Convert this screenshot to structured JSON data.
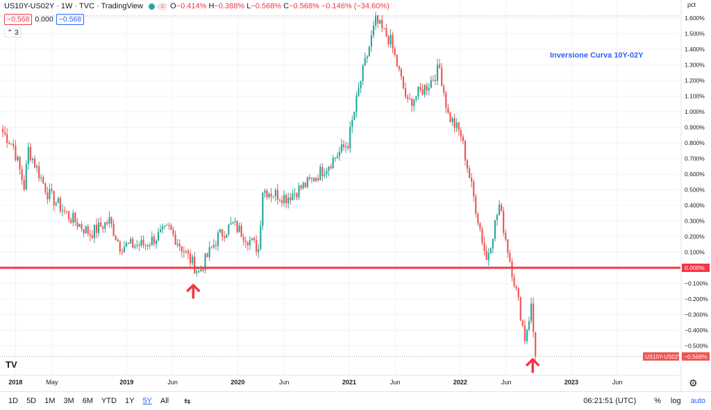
{
  "legend": {
    "symbol": "US10Y-US02Y · 1W · TVC · TradingView",
    "flag_icon": "equals-flag-icon",
    "o_label": "O",
    "o_value": "−0.414%",
    "h_label": "H",
    "h_value": "−0.388%",
    "l_label": "L",
    "l_value": "−0.568%",
    "c_label": "C",
    "c_value": "−0.568%",
    "change": "−0.146% (−34.60%)"
  },
  "price_row": {
    "sell": "−0.568",
    "spread": "0.000",
    "buy": "−0.568"
  },
  "collapse": {
    "label": "⌃ 3"
  },
  "annotation": "Inversione Curva 10Y-02Y",
  "price_axis": {
    "unit": "pct",
    "ticks": [
      "1.600%",
      "1.500%",
      "1.400%",
      "1.300%",
      "1.200%",
      "1.100%",
      "1.000%",
      "0.900%",
      "0.800%",
      "0.700%",
      "0.600%",
      "0.500%",
      "0.400%",
      "0.300%",
      "0.200%",
      "0.100%",
      "0.000%",
      "−0.100%",
      "−0.200%",
      "−0.300%",
      "−0.400%",
      "−0.500%",
      "−0.568%"
    ],
    "zero_tag": "0.000%",
    "last_tag": "−0.568%",
    "series_tag": "US10Y-US02Y"
  },
  "time_axis": {
    "labels": [
      "2018",
      "May",
      "2019",
      "Jun",
      "2020",
      "Jun",
      "2021",
      "Jun",
      "2022",
      "Jun",
      "2023",
      "Jun"
    ]
  },
  "toolbar": {
    "ranges": [
      "1D",
      "5D",
      "1M",
      "3M",
      "6M",
      "YTD",
      "1Y",
      "5Y",
      "All"
    ],
    "active": "5Y",
    "compare_icon": "compare-icon",
    "time": "06:21:51 (UTC)",
    "percent": "%",
    "log": "log",
    "auto": "auto"
  },
  "colors": {
    "up": "#26a69a",
    "down": "#ef5350",
    "zero_line": "#f23645",
    "arrow": "#f23645",
    "annotation": "#2962ff"
  },
  "chart_data": {
    "type": "candlestick",
    "title": "US10Y-US02Y · 1W · TVC · TradingView",
    "ylabel": "pct",
    "ylim": [
      -0.61,
      1.64
    ],
    "horizontal_line": 0.0,
    "waypoints": [
      {
        "t": "2017-11-20",
        "v": 0.87
      },
      {
        "t": "2017-12-25",
        "v": 0.78
      },
      {
        "t": "2018-01-29",
        "v": 0.52
      },
      {
        "t": "2018-02-12",
        "v": 0.76
      },
      {
        "t": "2018-04-16",
        "v": 0.48
      },
      {
        "t": "2018-06-25",
        "v": 0.33
      },
      {
        "t": "2018-09-03",
        "v": 0.22
      },
      {
        "t": "2018-11-05",
        "v": 0.3
      },
      {
        "t": "2018-12-10",
        "v": 0.14
      },
      {
        "t": "2019-03-04",
        "v": 0.15
      },
      {
        "t": "2019-05-20",
        "v": 0.25
      },
      {
        "t": "2019-08-26",
        "v": -0.03
      },
      {
        "t": "2019-10-28",
        "v": 0.2
      },
      {
        "t": "2019-12-16",
        "v": 0.28
      },
      {
        "t": "2020-03-09",
        "v": 0.12
      },
      {
        "t": "2020-03-23",
        "v": 0.5
      },
      {
        "t": "2020-06-08",
        "v": 0.45
      },
      {
        "t": "2020-08-24",
        "v": 0.55
      },
      {
        "t": "2020-10-19",
        "v": 0.65
      },
      {
        "t": "2020-12-28",
        "v": 0.8
      },
      {
        "t": "2021-02-08",
        "v": 1.2
      },
      {
        "t": "2021-03-29",
        "v": 1.58
      },
      {
        "t": "2021-05-17",
        "v": 1.45
      },
      {
        "t": "2021-07-12",
        "v": 1.05
      },
      {
        "t": "2021-09-20",
        "v": 1.18
      },
      {
        "t": "2021-10-25",
        "v": 1.28
      },
      {
        "t": "2021-11-22",
        "v": 0.98
      },
      {
        "t": "2022-01-03",
        "v": 0.85
      },
      {
        "t": "2022-02-14",
        "v": 0.45
      },
      {
        "t": "2022-03-28",
        "v": 0.05
      },
      {
        "t": "2022-05-09",
        "v": 0.4
      },
      {
        "t": "2022-06-13",
        "v": 0.05
      },
      {
        "t": "2022-07-11",
        "v": -0.22
      },
      {
        "t": "2022-08-01",
        "v": -0.45
      },
      {
        "t": "2022-08-22",
        "v": -0.25
      },
      {
        "t": "2022-09-05",
        "v": -0.57
      }
    ],
    "last": {
      "open": -0.414,
      "high": -0.388,
      "low": -0.568,
      "close": -0.568
    },
    "markers": [
      {
        "t": "2019-08-26",
        "label": "up-arrow"
      },
      {
        "t": "2022-09-05",
        "label": "up-arrow"
      }
    ]
  }
}
